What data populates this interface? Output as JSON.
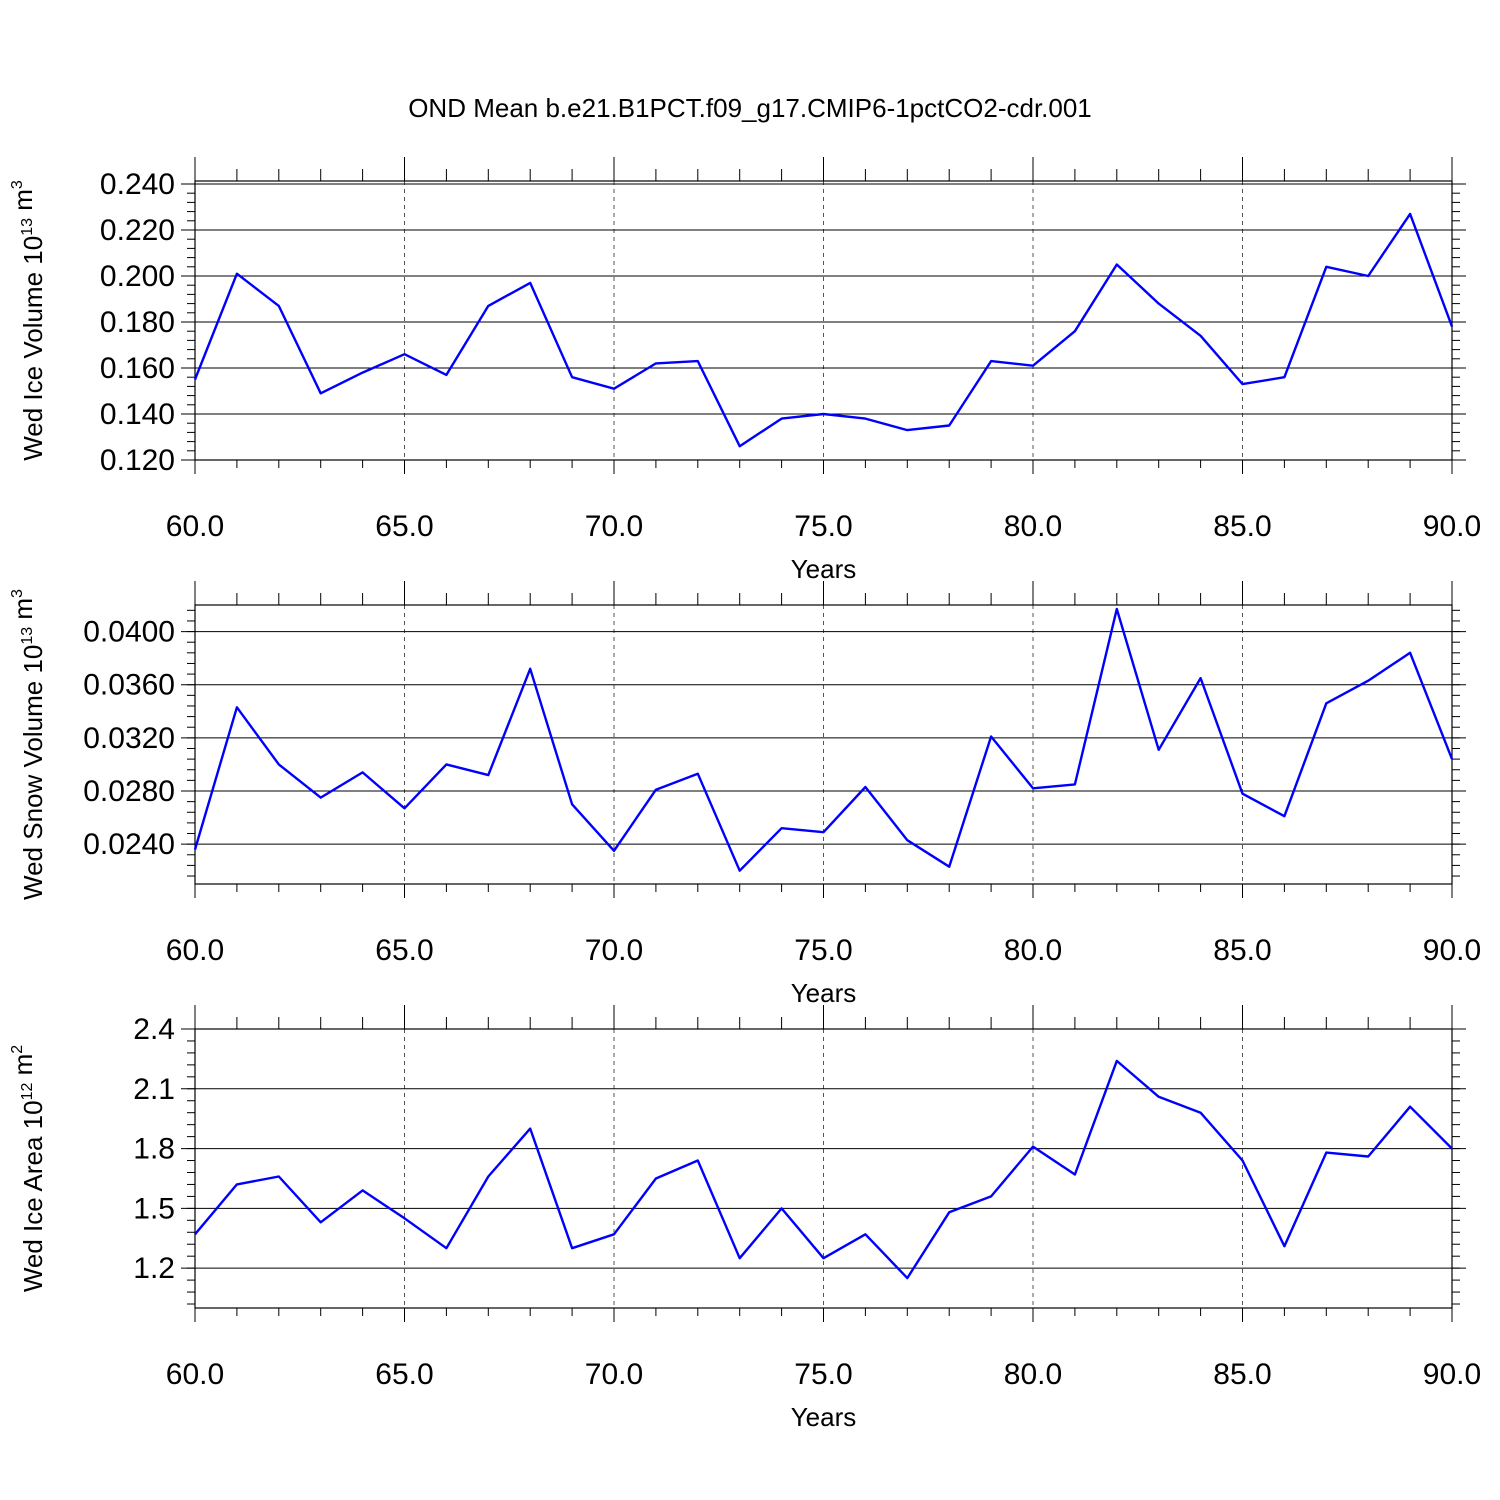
{
  "title": "OND Mean b.e21.B1PCT.f09_g17.CMIP6-1pctCO2-cdr.001",
  "colors": {
    "series": "#0000ff",
    "axis": "#000000",
    "grid": "#555555"
  },
  "chart_data": [
    {
      "type": "line",
      "ylabel": {
        "main": "Wed Ice Volume 10",
        "exp": "13",
        "unit": " m",
        "unit_exp": "3"
      },
      "xlabel": "Years",
      "xlim": [
        60,
        90
      ],
      "ylim": [
        0.12,
        0.2413
      ],
      "grid": "vertical dashed at major x ticks",
      "xticks": [
        "60.0",
        "65.0",
        "70.0",
        "75.0",
        "80.0",
        "85.0",
        "90.0"
      ],
      "xtick_values": [
        60,
        65,
        70,
        75,
        80,
        85,
        90
      ],
      "yticks": [
        "0.120",
        "0.140",
        "0.160",
        "0.180",
        "0.200",
        "0.220",
        "0.240"
      ],
      "ytick_values": [
        0.12,
        0.14,
        0.16,
        0.18,
        0.2,
        0.22,
        0.24
      ],
      "yminor": 0.004,
      "x": [
        60,
        61,
        62,
        63,
        64,
        65,
        66,
        67,
        68,
        69,
        70,
        71,
        72,
        73,
        74,
        75,
        76,
        77,
        78,
        79,
        80,
        81,
        82,
        83,
        84,
        85,
        86,
        87,
        88,
        89,
        90
      ],
      "values": [
        0.155,
        0.201,
        0.187,
        0.149,
        0.158,
        0.166,
        0.157,
        0.187,
        0.197,
        0.156,
        0.151,
        0.162,
        0.163,
        0.126,
        0.138,
        0.14,
        0.138,
        0.133,
        0.135,
        0.163,
        0.161,
        0.176,
        0.205,
        0.188,
        0.174,
        0.153,
        0.156,
        0.204,
        0.2,
        0.227,
        0.178
      ]
    },
    {
      "type": "line",
      "ylabel": {
        "main": "Wed Snow Volume 10",
        "exp": "13",
        "unit": " m",
        "unit_exp": "3"
      },
      "xlabel": "Years",
      "xlim": [
        60,
        90
      ],
      "ylim": [
        0.021,
        0.042
      ],
      "grid": "vertical dashed at major x ticks",
      "xticks": [
        "60.0",
        "65.0",
        "70.0",
        "75.0",
        "80.0",
        "85.0",
        "90.0"
      ],
      "xtick_values": [
        60,
        65,
        70,
        75,
        80,
        85,
        90
      ],
      "yticks": [
        "0.0240",
        "0.0280",
        "0.0320",
        "0.0360",
        "0.0400"
      ],
      "ytick_values": [
        0.024,
        0.028,
        0.032,
        0.036,
        0.04
      ],
      "yminor": 0.0008,
      "x": [
        60,
        61,
        62,
        63,
        64,
        65,
        66,
        67,
        68,
        69,
        70,
        71,
        72,
        73,
        74,
        75,
        76,
        77,
        78,
        79,
        80,
        81,
        82,
        83,
        84,
        85,
        86,
        87,
        88,
        89,
        90
      ],
      "values": [
        0.0236,
        0.0343,
        0.03,
        0.0275,
        0.0294,
        0.0267,
        0.03,
        0.0292,
        0.0372,
        0.027,
        0.0235,
        0.0281,
        0.0293,
        0.022,
        0.0252,
        0.0249,
        0.0283,
        0.0243,
        0.0223,
        0.0321,
        0.0282,
        0.0285,
        0.0417,
        0.0311,
        0.0365,
        0.0278,
        0.0261,
        0.0346,
        0.0363,
        0.0384,
        0.0304
      ]
    },
    {
      "type": "line",
      "ylabel": {
        "main": "Wed Ice Area 10",
        "exp": "12",
        "unit": " m",
        "unit_exp": "2"
      },
      "xlabel": "Years",
      "xlim": [
        60,
        90
      ],
      "ylim": [
        1.0,
        2.4
      ],
      "grid": "vertical dashed at major x ticks",
      "xticks": [
        "60.0",
        "65.0",
        "70.0",
        "75.0",
        "80.0",
        "85.0",
        "90.0"
      ],
      "xtick_values": [
        60,
        65,
        70,
        75,
        80,
        85,
        90
      ],
      "yticks": [
        "1.2",
        "1.5",
        "1.8",
        "2.1",
        "2.4"
      ],
      "ytick_values": [
        1.2,
        1.5,
        1.8,
        2.1,
        2.4
      ],
      "yminor": 0.06,
      "x": [
        60,
        61,
        62,
        63,
        64,
        65,
        66,
        67,
        68,
        69,
        70,
        71,
        72,
        73,
        74,
        75,
        76,
        77,
        78,
        79,
        80,
        81,
        82,
        83,
        84,
        85,
        86,
        87,
        88,
        89,
        90
      ],
      "values": [
        1.37,
        1.62,
        1.66,
        1.43,
        1.59,
        1.45,
        1.3,
        1.66,
        1.9,
        1.3,
        1.37,
        1.65,
        1.74,
        1.25,
        1.5,
        1.25,
        1.37,
        1.15,
        1.48,
        1.56,
        1.81,
        1.67,
        2.24,
        2.06,
        1.98,
        1.74,
        1.31,
        1.78,
        1.76,
        2.01,
        1.8
      ]
    }
  ]
}
